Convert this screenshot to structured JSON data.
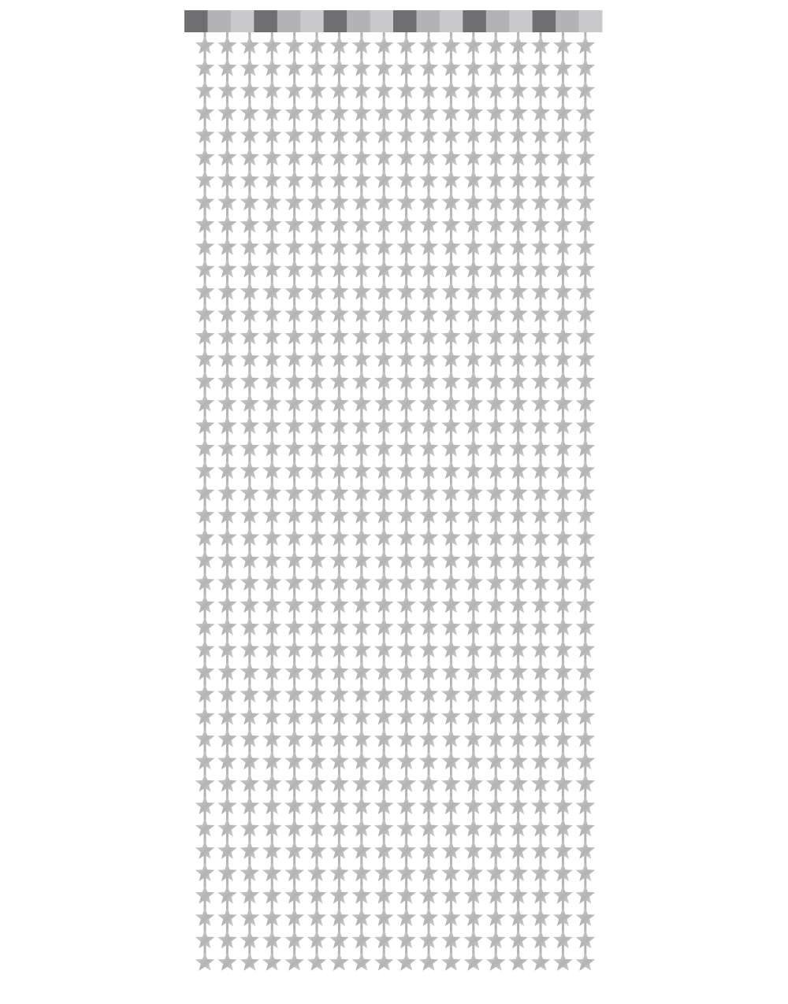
{
  "image": {
    "subject": "star-curtain",
    "colors": {
      "background": "#ffffff",
      "star_light": "#d4d4d6",
      "star_mid": "#b3b3b6",
      "star_dark": "#8f8f93",
      "header_dark": "#6f6f72",
      "header_light": "#c9c9cb"
    }
  }
}
